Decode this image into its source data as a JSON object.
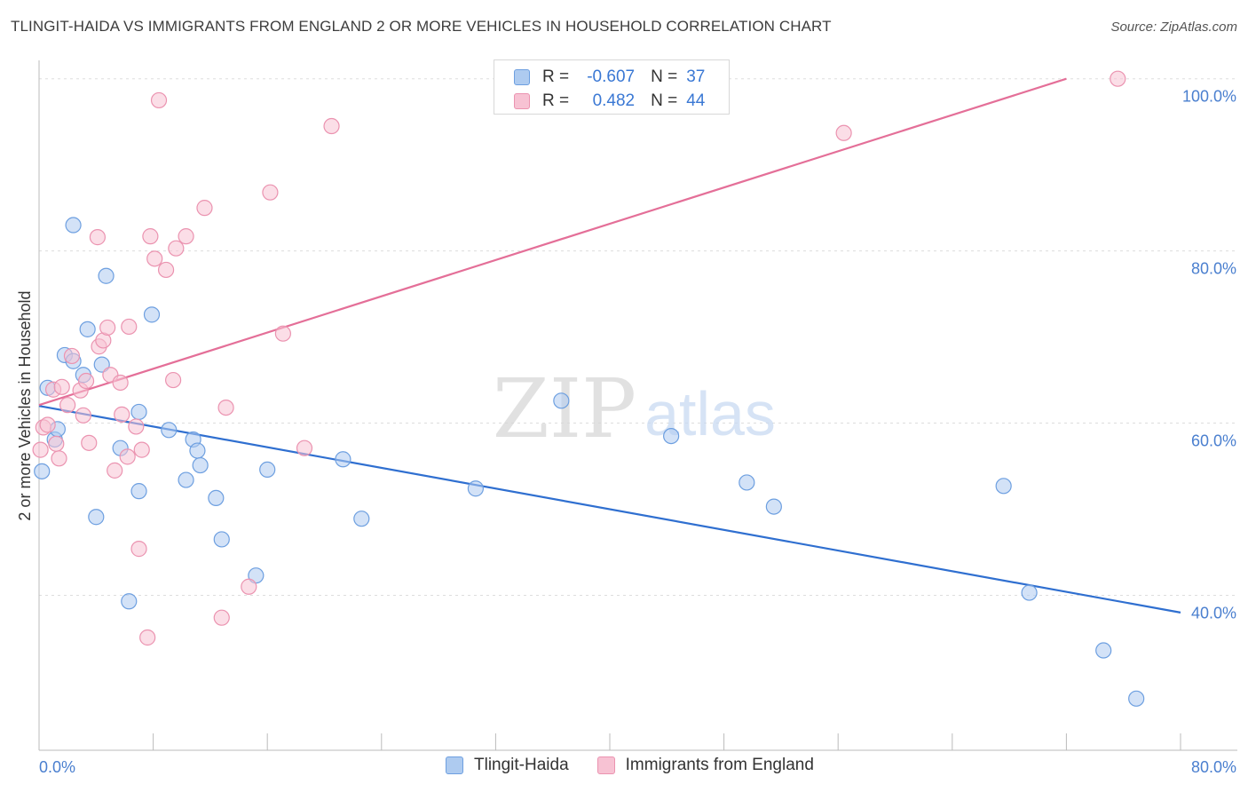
{
  "title": "TLINGIT-HAIDA VS IMMIGRANTS FROM ENGLAND 2 OR MORE VEHICLES IN HOUSEHOLD CORRELATION CHART",
  "source": "Source: ZipAtlas.com",
  "watermark": {
    "zip": "ZIP",
    "atlas": "atlas"
  },
  "legend": {
    "rows": [
      {
        "r_label": "R =",
        "r_value": "-0.607",
        "n_label": "N =",
        "n_value": "37"
      },
      {
        "r_label": "R =",
        "r_value": "0.482",
        "n_label": "N =",
        "n_value": "44"
      }
    ]
  },
  "colors": {
    "blue_fill": "#aecbf0",
    "blue_stroke": "#6d9fe0",
    "blue_line": "#2f6fd0",
    "pink_fill": "#f7c2d3",
    "pink_stroke": "#eb93b0",
    "pink_line": "#e46f98",
    "tick_text": "#4a7fcf",
    "grid": "#dddddd"
  },
  "chart_data": {
    "type": "scatter",
    "xlabel": "",
    "ylabel": "2 or more Vehicles in Household",
    "xlim": [
      0,
      80
    ],
    "ylim": [
      22,
      101
    ],
    "x_tick_labels": [
      "0.0%",
      "80.0%"
    ],
    "y_ticks": [
      40,
      60,
      80,
      100
    ],
    "y_tick_labels": [
      "40.0%",
      "60.0%",
      "80.0%",
      "100.0%"
    ],
    "grid": true,
    "legend_position": "top-center and bottom",
    "series": [
      {
        "name": "Tlingit-Haida",
        "color": "#aecbf0",
        "trend": {
          "x": [
            0,
            80
          ],
          "y": [
            62.0,
            38.0
          ]
        },
        "points": [
          [
            0.2,
            54.4
          ],
          [
            0.6,
            64.1
          ],
          [
            1.1,
            58.1
          ],
          [
            1.3,
            59.3
          ],
          [
            1.8,
            67.9
          ],
          [
            2.4,
            67.2
          ],
          [
            2.4,
            83.0
          ],
          [
            3.1,
            65.6
          ],
          [
            3.4,
            70.9
          ],
          [
            4.0,
            49.1
          ],
          [
            4.4,
            66.8
          ],
          [
            4.7,
            77.1
          ],
          [
            5.7,
            57.1
          ],
          [
            6.3,
            39.3
          ],
          [
            7.0,
            52.1
          ],
          [
            7.0,
            61.3
          ],
          [
            7.9,
            72.6
          ],
          [
            9.1,
            59.2
          ],
          [
            10.3,
            53.4
          ],
          [
            10.8,
            58.1
          ],
          [
            11.1,
            56.8
          ],
          [
            11.3,
            55.1
          ],
          [
            12.4,
            51.3
          ],
          [
            12.8,
            46.5
          ],
          [
            15.2,
            42.3
          ],
          [
            16.0,
            54.6
          ],
          [
            21.3,
            55.8
          ],
          [
            22.6,
            48.9
          ],
          [
            30.6,
            52.4
          ],
          [
            36.6,
            62.6
          ],
          [
            44.3,
            58.5
          ],
          [
            49.6,
            53.1
          ],
          [
            51.5,
            50.3
          ],
          [
            67.6,
            52.7
          ],
          [
            69.4,
            40.3
          ],
          [
            74.6,
            33.6
          ],
          [
            76.9,
            28.0
          ]
        ]
      },
      {
        "name": "Immigrants from England",
        "color": "#f7c2d3",
        "trend": {
          "x": [
            0,
            72
          ],
          "y": [
            62.1,
            100.0
          ]
        },
        "points": [
          [
            0.1,
            56.9
          ],
          [
            0.3,
            59.5
          ],
          [
            0.6,
            59.8
          ],
          [
            1.0,
            63.9
          ],
          [
            1.2,
            57.6
          ],
          [
            1.4,
            55.9
          ],
          [
            1.6,
            64.2
          ],
          [
            2.0,
            62.1
          ],
          [
            2.3,
            67.8
          ],
          [
            2.9,
            63.8
          ],
          [
            3.1,
            60.9
          ],
          [
            3.3,
            64.9
          ],
          [
            3.5,
            57.7
          ],
          [
            4.2,
            68.9
          ],
          [
            4.1,
            81.6
          ],
          [
            4.5,
            69.6
          ],
          [
            4.8,
            71.1
          ],
          [
            5.0,
            65.6
          ],
          [
            5.3,
            54.5
          ],
          [
            5.7,
            64.7
          ],
          [
            5.8,
            61.0
          ],
          [
            6.2,
            56.1
          ],
          [
            6.3,
            71.2
          ],
          [
            6.8,
            59.6
          ],
          [
            7.0,
            45.4
          ],
          [
            7.2,
            56.9
          ],
          [
            7.6,
            35.1
          ],
          [
            7.8,
            81.7
          ],
          [
            8.1,
            79.1
          ],
          [
            8.4,
            97.5
          ],
          [
            8.9,
            77.8
          ],
          [
            9.4,
            65.0
          ],
          [
            9.6,
            80.3
          ],
          [
            10.3,
            81.7
          ],
          [
            11.6,
            85.0
          ],
          [
            12.8,
            37.4
          ],
          [
            13.1,
            61.8
          ],
          [
            14.7,
            41.0
          ],
          [
            16.2,
            86.8
          ],
          [
            17.1,
            70.4
          ],
          [
            18.6,
            57.1
          ],
          [
            20.5,
            94.5
          ],
          [
            56.4,
            93.7
          ],
          [
            75.6,
            100.0
          ]
        ]
      }
    ]
  },
  "bottom_legend": {
    "items": [
      {
        "label": "Tlingit-Haida"
      },
      {
        "label": "Immigrants from England"
      }
    ]
  }
}
